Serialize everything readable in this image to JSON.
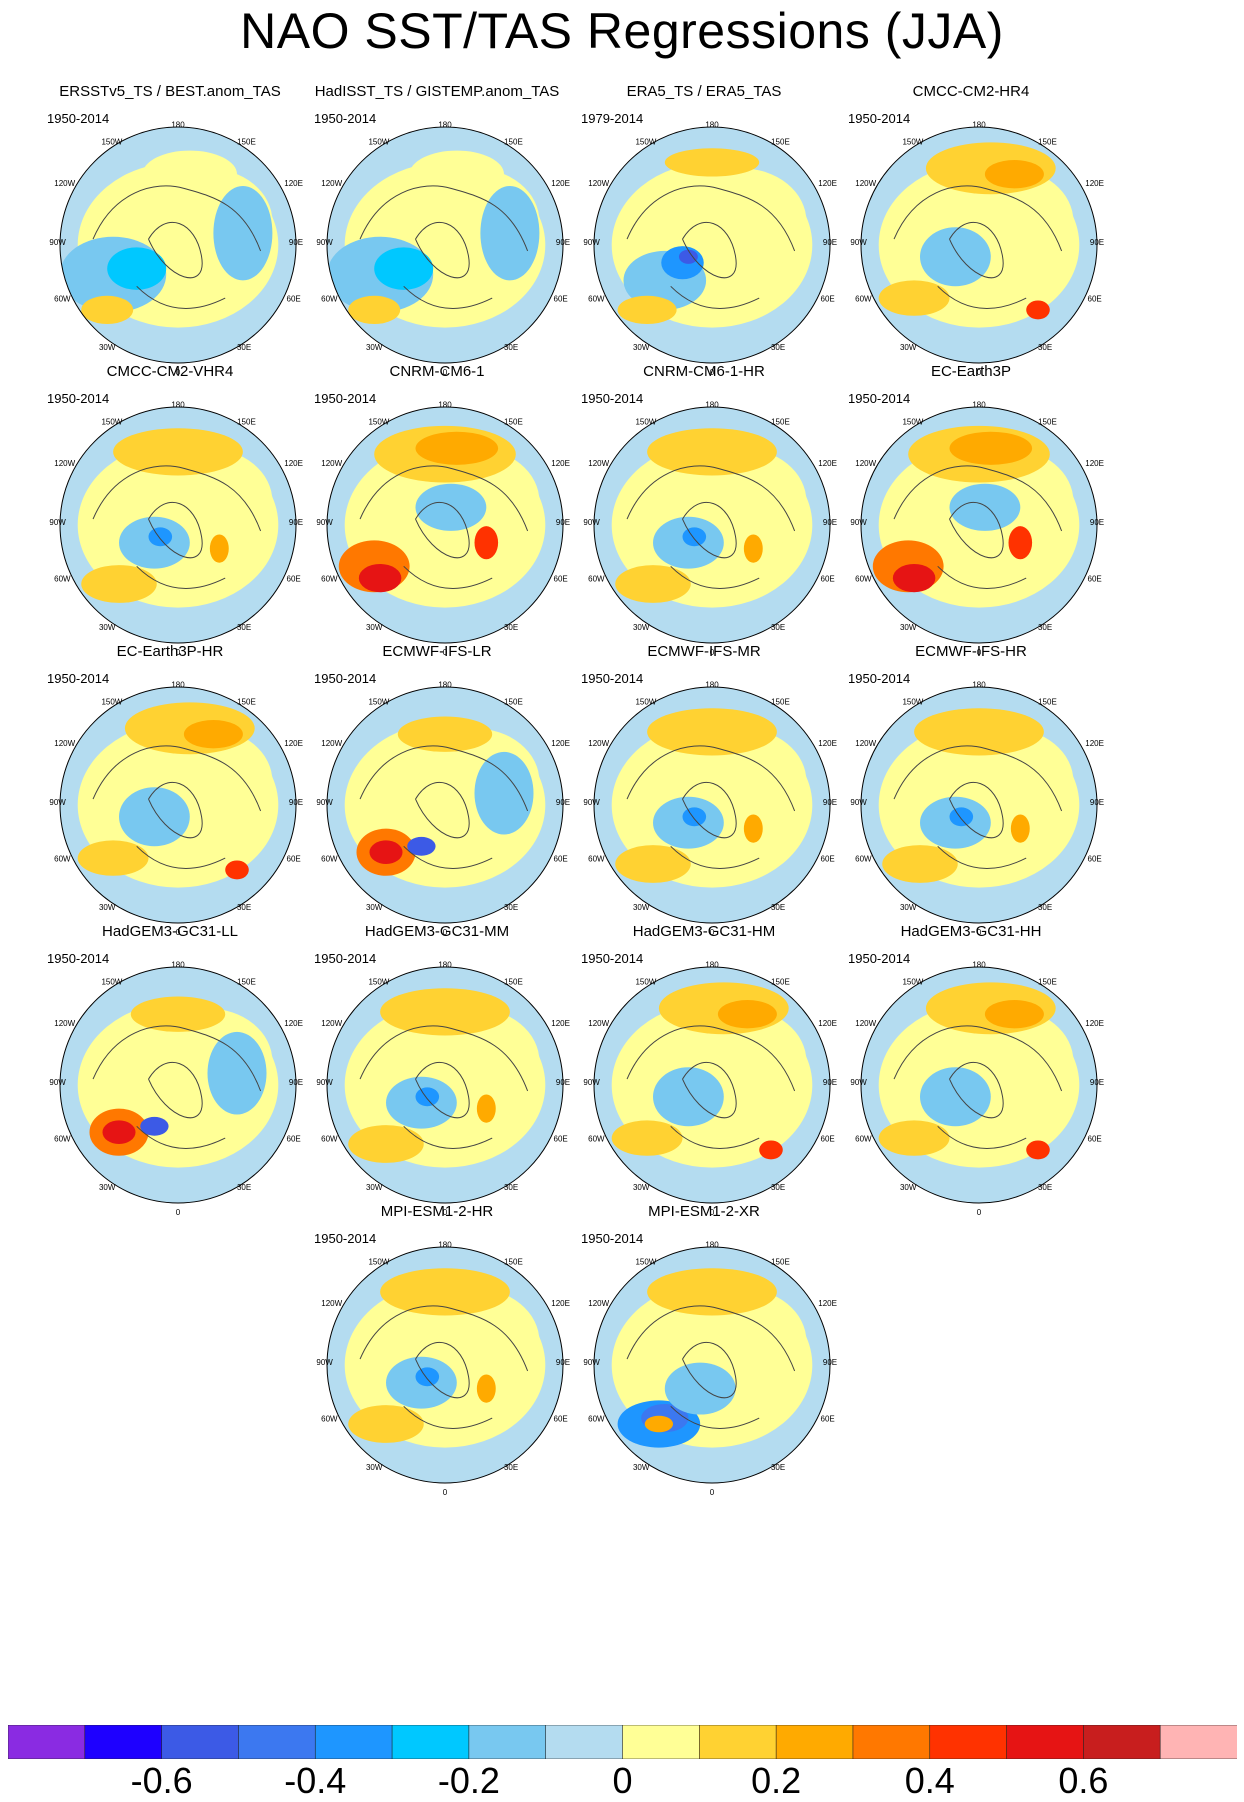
{
  "title": "NAO SST/TAS Regressions (JJA)",
  "lon_labels": {
    "top": "180",
    "tl": "150W",
    "tr": "150E",
    "ul": "120W",
    "ur": "120E",
    "ml": "90W",
    "mr": "90E",
    "ll": "60W",
    "lr": "60E",
    "bl": "30W",
    "br": "30E",
    "bottom": "0"
  },
  "panels": [
    {
      "title": "ERSSTv5_TS / BEST.anom_TAS",
      "period": "1950-2014",
      "pattern": "obs"
    },
    {
      "title": "HadISST_TS / GISTEMP.anom_TAS",
      "period": "1950-2014",
      "pattern": "obs"
    },
    {
      "title": "ERA5_TS / ERA5_TAS",
      "period": "1979-2014",
      "pattern": "era"
    },
    {
      "title": "CMCC-CM2-HR4",
      "period": "1950-2014",
      "pattern": "warm"
    },
    {
      "title": "CMCC-CM2-VHR4",
      "period": "1950-2014",
      "pattern": "mild"
    },
    {
      "title": "CNRM-CM6-1",
      "period": "1950-2014",
      "pattern": "hot"
    },
    {
      "title": "CNRM-CM6-1-HR",
      "period": "1950-2014",
      "pattern": "mild"
    },
    {
      "title": "EC-Earth3P",
      "period": "1950-2014",
      "pattern": "hot"
    },
    {
      "title": "EC-Earth3P-HR",
      "period": "1950-2014",
      "pattern": "warm"
    },
    {
      "title": "ECMWF-IFS-LR",
      "period": "1950-2014",
      "pattern": "dipole"
    },
    {
      "title": "ECMWF-IFS-MR",
      "period": "1950-2014",
      "pattern": "mild"
    },
    {
      "title": "ECMWF-IFS-HR",
      "period": "1950-2014",
      "pattern": "mild"
    },
    {
      "title": "HadGEM3-GC31-LL",
      "period": "1950-2014",
      "pattern": "dipole"
    },
    {
      "title": "HadGEM3-GC31-MM",
      "period": "1950-2014",
      "pattern": "mild"
    },
    {
      "title": "HadGEM3-GC31-HM",
      "period": "1950-2014",
      "pattern": "warm"
    },
    {
      "title": "HadGEM3-GC31-HH",
      "period": "1950-2014",
      "pattern": "warm"
    },
    {
      "title": "MPI-ESM1-2-HR",
      "period": "1950-2014",
      "pattern": "mild"
    },
    {
      "title": "MPI-ESM1-2-XR",
      "period": "1950-2014",
      "pattern": "cold"
    }
  ],
  "colorbar": {
    "colors": [
      "#8a2be2",
      "#1e00ff",
      "#3c5ae6",
      "#3c78f0",
      "#1e96ff",
      "#00c8ff",
      "#78c8f0",
      "#b4dcf0",
      "#ffff96",
      "#ffd232",
      "#ffaa00",
      "#ff7800",
      "#ff3200",
      "#e61414",
      "#c81e1e",
      "#ffb4b4"
    ],
    "labels": [
      {
        "text": "-0.6",
        "value": -0.6
      },
      {
        "text": "-0.4",
        "value": -0.4
      },
      {
        "text": "-0.2",
        "value": -0.2
      },
      {
        "text": "0",
        "value": 0
      },
      {
        "text": "0.2",
        "value": 0.2
      },
      {
        "text": "0.4",
        "value": 0.4
      },
      {
        "text": "0.6",
        "value": 0.6
      }
    ]
  }
}
